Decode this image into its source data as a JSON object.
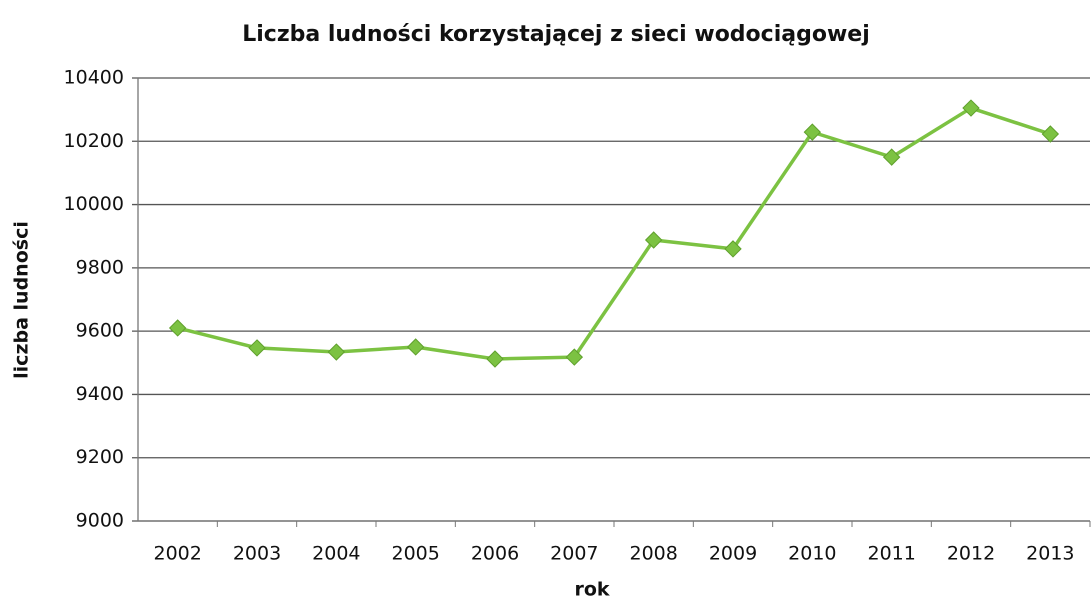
{
  "chart_data": {
    "type": "line",
    "title": "Liczba ludności korzystającej z sieci wodociągowej",
    "x_label": "rok",
    "y_label": "liczba ludności",
    "categories": [
      "2002",
      "2003",
      "2004",
      "2005",
      "2006",
      "2007",
      "2008",
      "2009",
      "2010",
      "2011",
      "2012",
      "2013"
    ],
    "series": [
      {
        "name": "liczba ludności",
        "color": "#7cc242",
        "values": [
          9610,
          9547,
          9534,
          9550,
          9512,
          9518,
          9888,
          9860,
          10229,
          10150,
          10305,
          10223
        ]
      }
    ],
    "ylim": [
      9000,
      10400
    ],
    "yticks": [
      9000,
      9200,
      9400,
      9600,
      9800,
      10000,
      10200,
      10400
    ],
    "grid": true
  }
}
